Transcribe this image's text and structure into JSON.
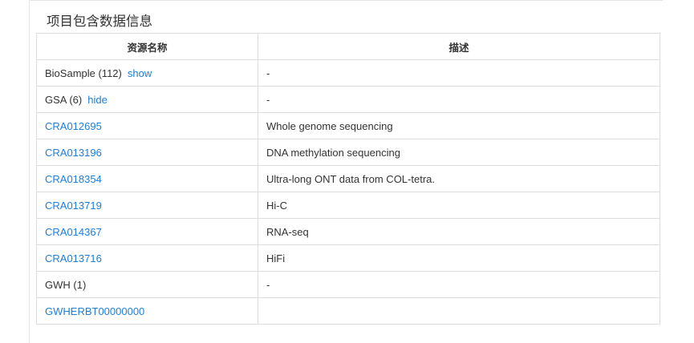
{
  "section": {
    "title": "项目包含数据信息"
  },
  "table": {
    "headers": {
      "name": "资源名称",
      "description": "描述"
    },
    "rows": [
      {
        "name": "BioSample (112)",
        "toggle": "show",
        "description": "-"
      },
      {
        "name": "GSA (6)",
        "toggle": "hide",
        "description": "-"
      },
      {
        "link": "CRA012695",
        "description": "Whole genome sequencing"
      },
      {
        "link": "CRA013196",
        "description": "DNA methylation sequencing"
      },
      {
        "link": "CRA018354",
        "description": "Ultra-long ONT data from COL-tetra."
      },
      {
        "link": "CRA013719",
        "description": "Hi-C"
      },
      {
        "link": "CRA014367",
        "description": "RNA-seq"
      },
      {
        "link": "CRA013716",
        "description": "HiFi"
      },
      {
        "name": "GWH (1)",
        "description": "-"
      },
      {
        "link": "GWHERBT00000000",
        "description": ""
      }
    ]
  },
  "colors": {
    "link": "#1e7ed6",
    "border": "#dddddd",
    "text": "#333333"
  }
}
